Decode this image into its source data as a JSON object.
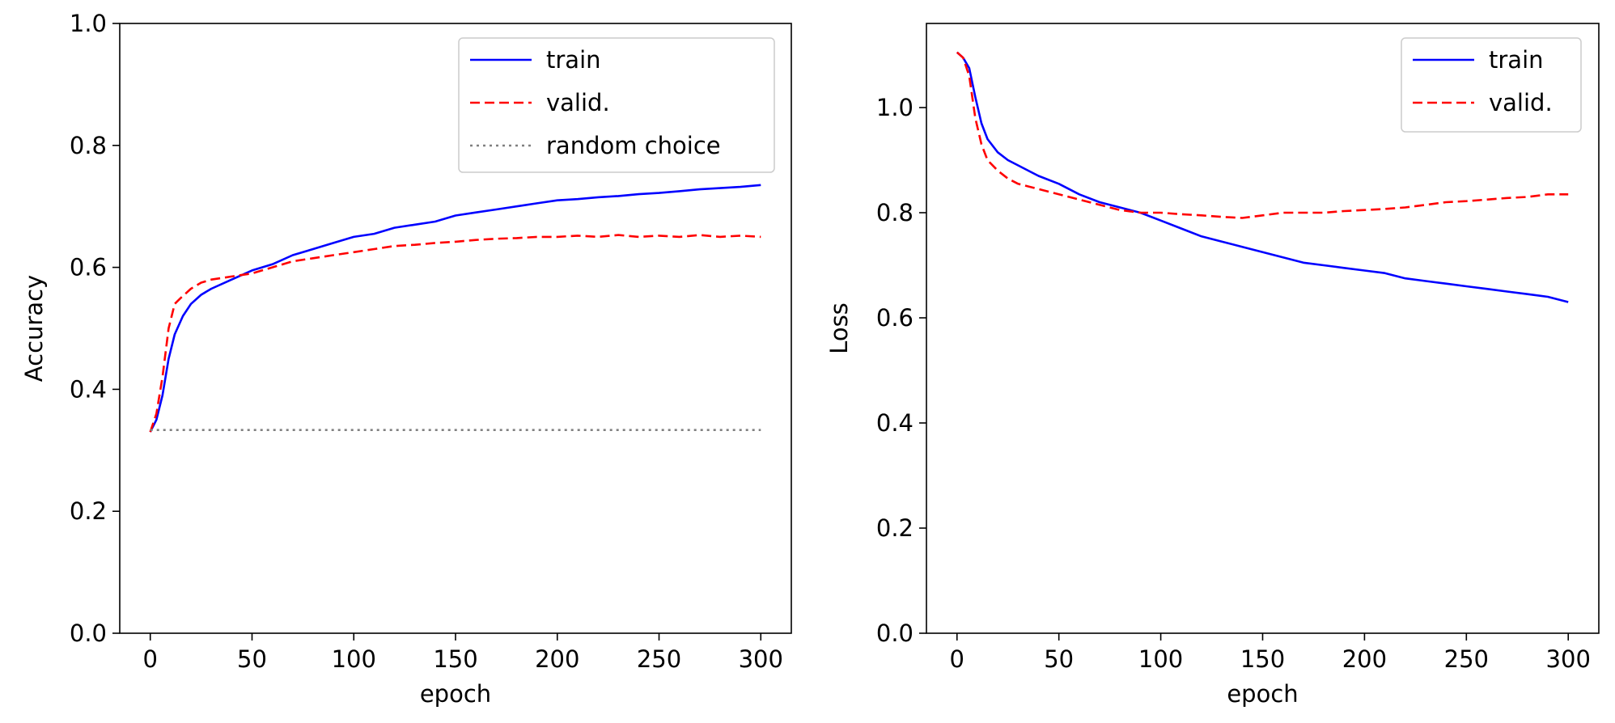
{
  "chart_data": [
    {
      "type": "line",
      "title": "",
      "xlabel": "epoch",
      "ylabel": "Accuracy",
      "xlim": [
        -15,
        315
      ],
      "ylim": [
        0.0,
        1.0
      ],
      "xticks": [
        0,
        50,
        100,
        150,
        200,
        250,
        300
      ],
      "yticks": [
        0.0,
        0.2,
        0.4,
        0.6,
        0.8,
        1.0
      ],
      "grid": false,
      "legend": "top-right",
      "series": [
        {
          "name": "train",
          "color": "#0000ff",
          "style": "solid",
          "x": [
            0,
            3,
            6,
            9,
            12,
            16,
            20,
            25,
            30,
            40,
            50,
            60,
            70,
            80,
            90,
            100,
            110,
            120,
            130,
            140,
            150,
            160,
            170,
            180,
            190,
            200,
            210,
            220,
            230,
            240,
            250,
            260,
            270,
            280,
            290,
            300
          ],
          "y": [
            0.33,
            0.35,
            0.39,
            0.45,
            0.49,
            0.52,
            0.54,
            0.555,
            0.565,
            0.58,
            0.595,
            0.605,
            0.62,
            0.63,
            0.64,
            0.65,
            0.655,
            0.665,
            0.67,
            0.675,
            0.685,
            0.69,
            0.695,
            0.7,
            0.705,
            0.71,
            0.712,
            0.715,
            0.717,
            0.72,
            0.722,
            0.725,
            0.728,
            0.73,
            0.732,
            0.735
          ]
        },
        {
          "name": "valid.",
          "color": "#ff0000",
          "style": "dashed",
          "x": [
            0,
            3,
            6,
            9,
            12,
            15,
            20,
            25,
            30,
            40,
            50,
            60,
            70,
            80,
            90,
            100,
            110,
            120,
            130,
            140,
            150,
            160,
            170,
            180,
            190,
            200,
            210,
            220,
            230,
            240,
            250,
            260,
            270,
            280,
            290,
            300
          ],
          "y": [
            0.33,
            0.36,
            0.42,
            0.5,
            0.54,
            0.55,
            0.565,
            0.575,
            0.58,
            0.585,
            0.59,
            0.6,
            0.61,
            0.615,
            0.62,
            0.625,
            0.63,
            0.635,
            0.637,
            0.64,
            0.642,
            0.645,
            0.647,
            0.648,
            0.65,
            0.65,
            0.652,
            0.65,
            0.653,
            0.65,
            0.652,
            0.65,
            0.653,
            0.65,
            0.652,
            0.65
          ]
        },
        {
          "name": "random choice",
          "color": "#808080",
          "style": "dotted",
          "x": [
            0,
            300
          ],
          "y": [
            0.3333,
            0.3333
          ]
        }
      ]
    },
    {
      "type": "line",
      "title": "",
      "xlabel": "epoch",
      "ylabel": "Loss",
      "xlim": [
        -15,
        315
      ],
      "ylim": [
        0.0,
        1.16
      ],
      "xticks": [
        0,
        50,
        100,
        150,
        200,
        250,
        300
      ],
      "yticks": [
        0.0,
        0.2,
        0.4,
        0.6,
        0.8,
        1.0
      ],
      "grid": false,
      "legend": "top-right",
      "series": [
        {
          "name": "train",
          "color": "#0000ff",
          "style": "solid",
          "x": [
            0,
            3,
            6,
            9,
            12,
            15,
            20,
            25,
            30,
            40,
            50,
            60,
            70,
            80,
            90,
            100,
            110,
            120,
            130,
            140,
            150,
            160,
            170,
            180,
            190,
            200,
            210,
            220,
            230,
            240,
            250,
            260,
            270,
            280,
            290,
            300
          ],
          "y": [
            1.105,
            1.095,
            1.075,
            1.02,
            0.97,
            0.94,
            0.915,
            0.9,
            0.89,
            0.87,
            0.855,
            0.835,
            0.82,
            0.81,
            0.8,
            0.785,
            0.77,
            0.755,
            0.745,
            0.735,
            0.725,
            0.715,
            0.705,
            0.7,
            0.695,
            0.69,
            0.685,
            0.675,
            0.67,
            0.665,
            0.66,
            0.655,
            0.65,
            0.645,
            0.64,
            0.63
          ]
        },
        {
          "name": "valid.",
          "color": "#ff0000",
          "style": "dashed",
          "x": [
            0,
            3,
            6,
            9,
            12,
            15,
            20,
            25,
            30,
            40,
            50,
            60,
            70,
            80,
            90,
            100,
            110,
            120,
            130,
            140,
            150,
            160,
            170,
            180,
            190,
            200,
            210,
            220,
            230,
            240,
            250,
            260,
            270,
            280,
            290,
            300
          ],
          "y": [
            1.105,
            1.095,
            1.06,
            0.98,
            0.93,
            0.9,
            0.88,
            0.865,
            0.855,
            0.845,
            0.835,
            0.825,
            0.815,
            0.805,
            0.8,
            0.8,
            0.797,
            0.795,
            0.792,
            0.79,
            0.795,
            0.8,
            0.8,
            0.8,
            0.803,
            0.805,
            0.807,
            0.81,
            0.815,
            0.82,
            0.822,
            0.825,
            0.828,
            0.83,
            0.835,
            0.835
          ]
        }
      ]
    }
  ]
}
